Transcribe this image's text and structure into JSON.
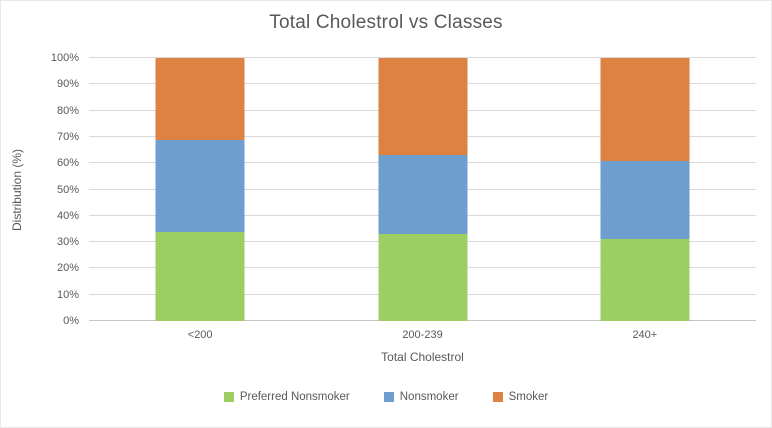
{
  "chart_data": {
    "type": "bar",
    "subtype": "stacked-100-percent",
    "title": "Total Cholestrol vs Classes",
    "xlabel": "Total Cholestrol",
    "ylabel": "Distribution (%)",
    "categories": [
      "<200",
      "200-239",
      "240+"
    ],
    "series": [
      {
        "name": "Preferred Nonsmoker",
        "color": "#9dce63",
        "values": [
          34,
          33,
          31
        ]
      },
      {
        "name": "Nonsmoker",
        "color": "#6d9ecd",
        "values": [
          35,
          30,
          30
        ]
      },
      {
        "name": "Smoker",
        "color": "#de8244",
        "values": [
          31,
          37,
          39
        ]
      }
    ],
    "y_ticks": [
      "0%",
      "10%",
      "20%",
      "30%",
      "40%",
      "50%",
      "60%",
      "70%",
      "80%",
      "90%",
      "100%"
    ],
    "ylim": [
      0,
      100
    ],
    "grid": true,
    "legend_position": "bottom",
    "colors": {
      "text": "#595959",
      "gridline": "#d9d9d9",
      "background": "#ffffff"
    }
  }
}
